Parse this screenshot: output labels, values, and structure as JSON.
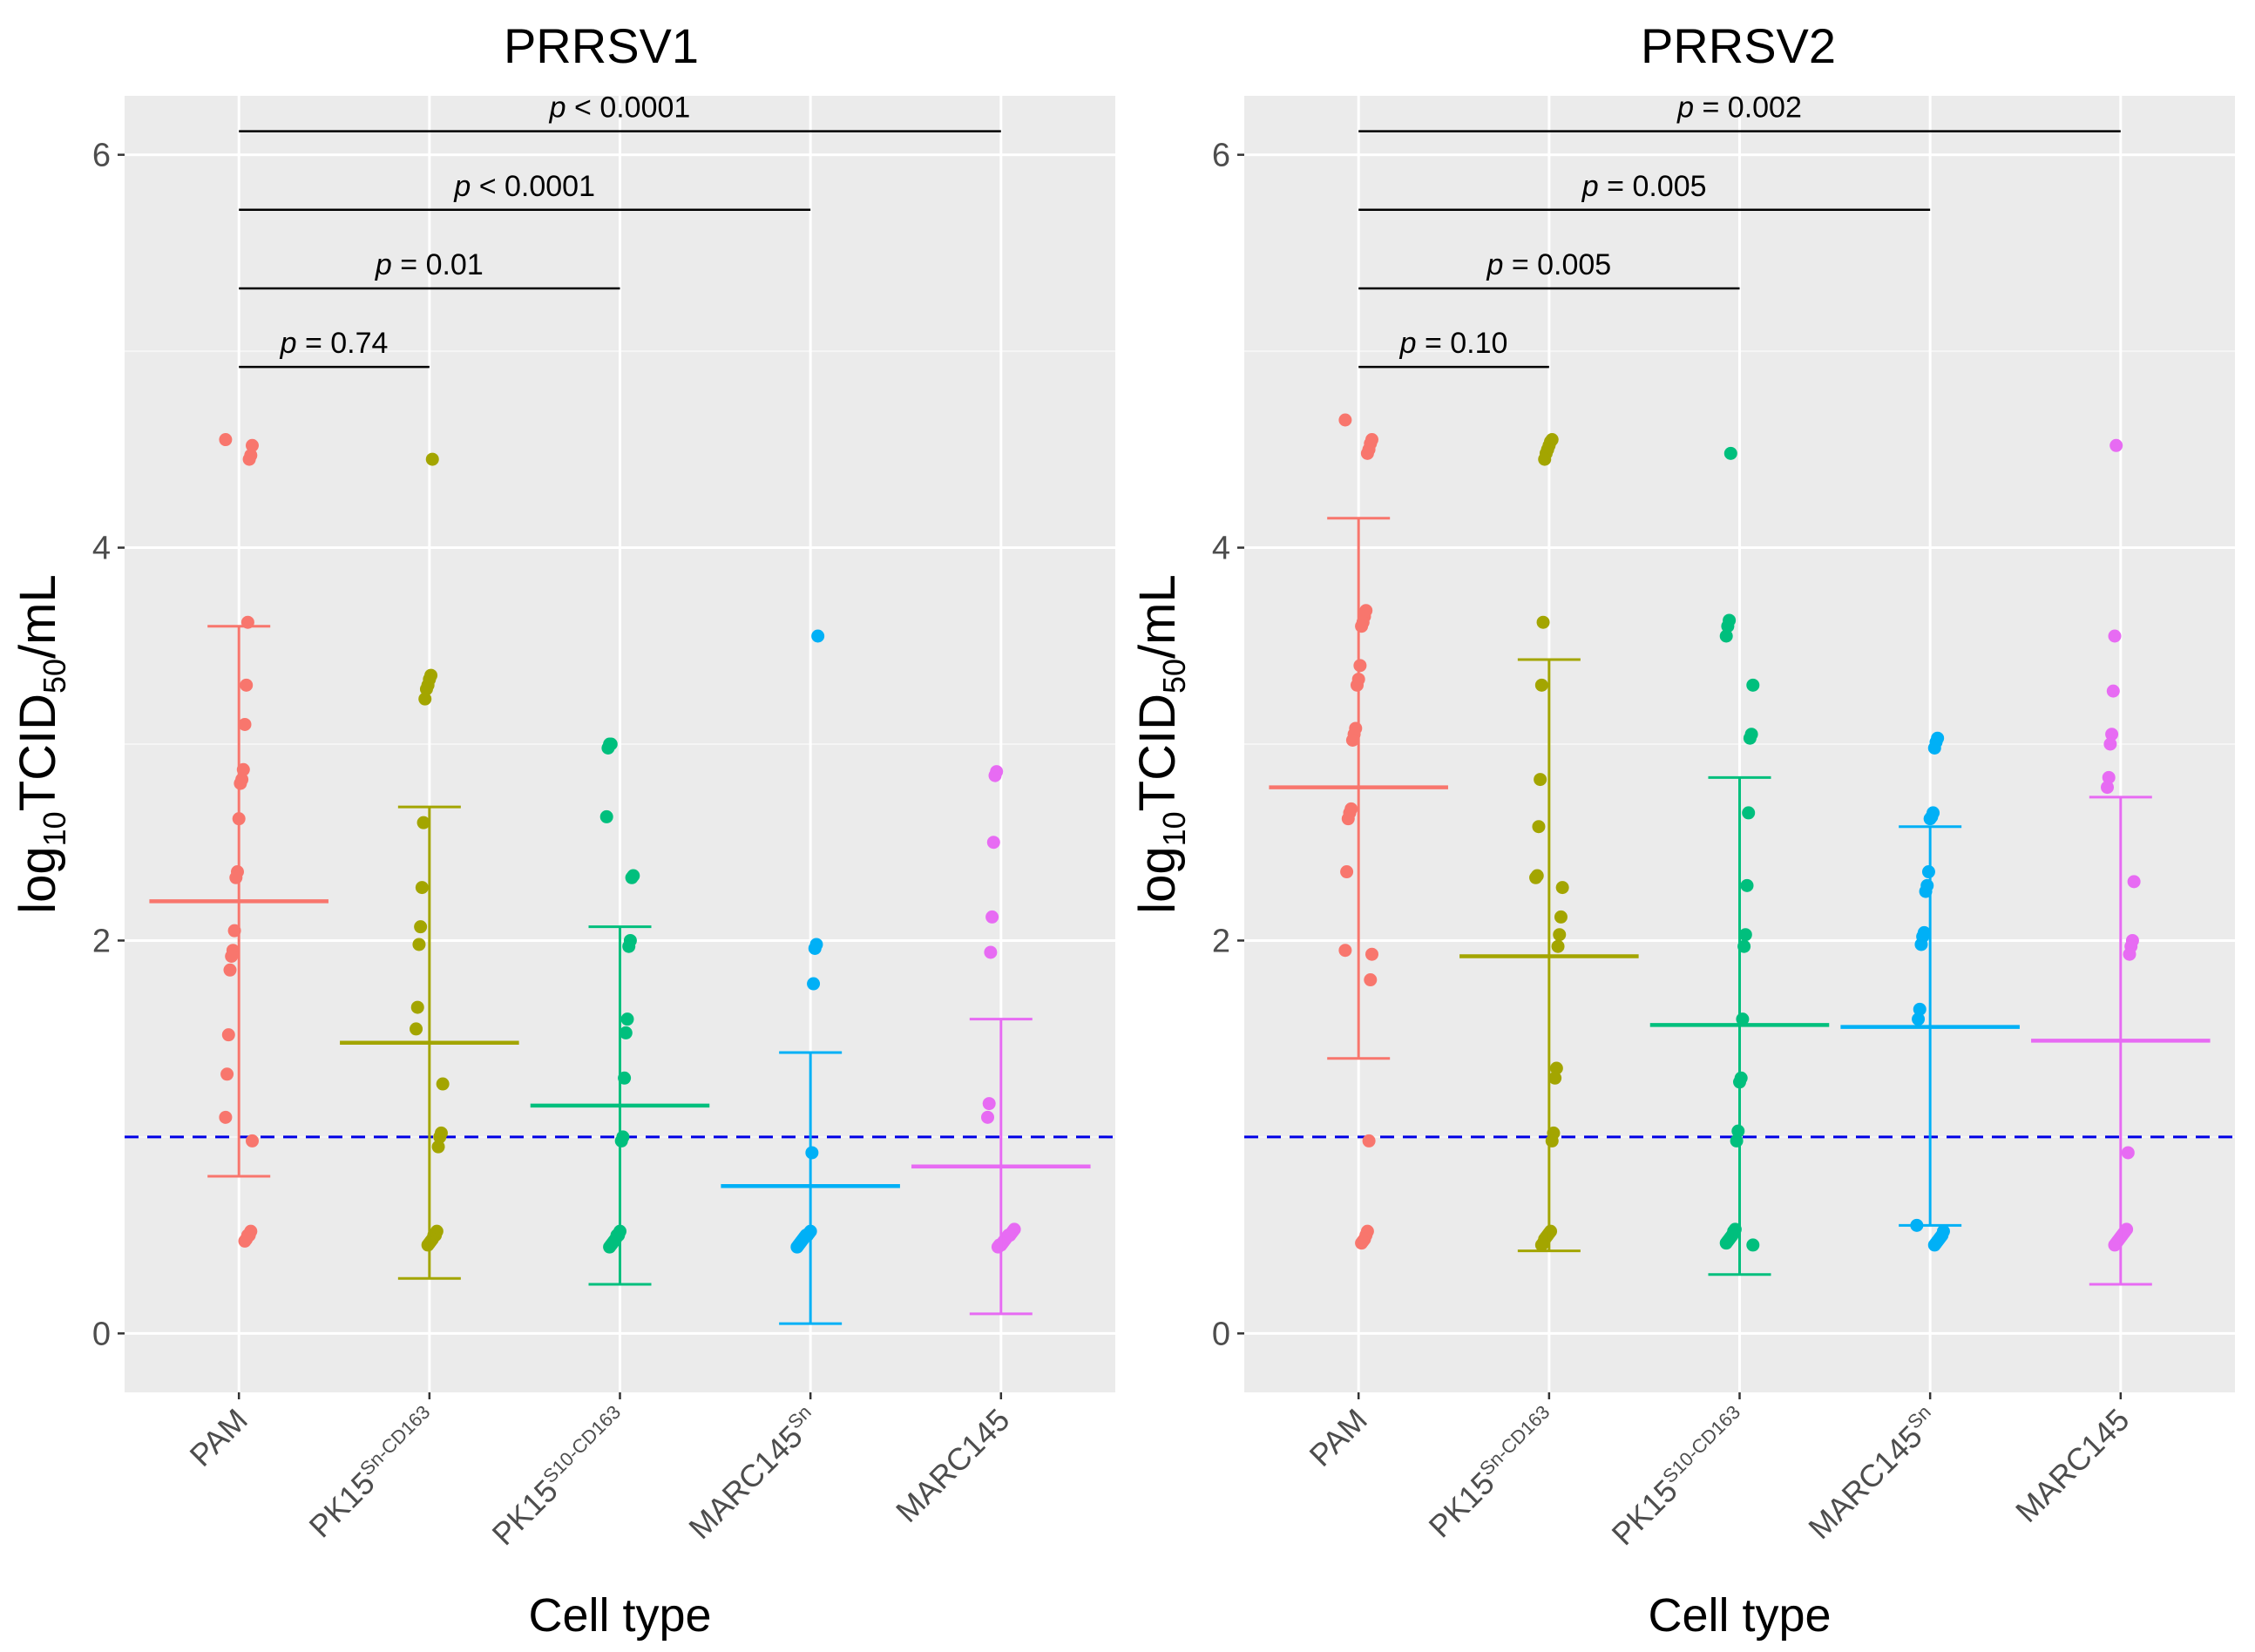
{
  "chart_data": [
    {
      "type": "scatter",
      "title": "PRRSV1",
      "xlabel": "Cell type",
      "ylabel_parts": {
        "base": "log",
        "sub1": "10",
        "mid": "TCID",
        "sub2": "50",
        "tail": "/mL"
      },
      "ylim": [
        -0.3,
        6.3
      ],
      "yticks": [
        "0",
        "2",
        "4",
        "6"
      ],
      "categories": [
        {
          "name": "PAM",
          "sup": ""
        },
        {
          "name": "PK15",
          "sup": "Sn-CD163"
        },
        {
          "name": "PK15",
          "sup": "S10-CD163"
        },
        {
          "name": "MARC145",
          "sup": "Sn"
        },
        {
          "name": "MARC145",
          "sup": ""
        }
      ],
      "detection_limit": 1.0,
      "series": [
        {
          "name": "PAM",
          "color": "#F8766D",
          "mean": 2.2,
          "sd_low": 0.8,
          "sd_high": 3.6,
          "points": [
            4.55,
            4.52,
            4.47,
            4.45,
            3.62,
            3.3,
            3.1,
            2.87,
            2.82,
            2.8,
            2.62,
            2.35,
            2.32,
            2.05,
            1.95,
            1.92,
            1.85,
            1.52,
            1.32,
            1.1,
            0.98,
            0.52,
            0.5,
            0.5,
            0.48,
            0.47
          ]
        },
        {
          "name": "PK15Sn-CD163",
          "color": "#A3A500",
          "mean": 1.48,
          "sd_low": 0.28,
          "sd_high": 2.68,
          "points": [
            4.45,
            3.35,
            3.33,
            3.3,
            3.28,
            3.23,
            2.6,
            2.27,
            2.07,
            1.98,
            1.66,
            1.55,
            1.27,
            1.02,
            1.0,
            0.95,
            0.52,
            0.5,
            0.5,
            0.48,
            0.47,
            0.46,
            0.45
          ]
        },
        {
          "name": "PK15S10-CD163",
          "color": "#00BF7D",
          "mean": 1.16,
          "sd_low": 0.25,
          "sd_high": 2.07,
          "points": [
            3.0,
            3.0,
            2.98,
            2.63,
            2.33,
            2.32,
            2.0,
            1.97,
            1.6,
            1.53,
            1.3,
            1.0,
            0.98,
            0.52,
            0.5,
            0.5,
            0.48,
            0.47,
            0.46,
            0.45,
            0.44
          ]
        },
        {
          "name": "MARC145Sn",
          "color": "#00B0F6",
          "mean": 0.75,
          "sd_low": 0.05,
          "sd_high": 1.43,
          "points": [
            3.55,
            1.98,
            1.96,
            1.78,
            0.92,
            0.52,
            0.51,
            0.5,
            0.5,
            0.49,
            0.48,
            0.47,
            0.46,
            0.45,
            0.44
          ]
        },
        {
          "name": "MARC145",
          "color": "#E76BF3",
          "mean": 0.85,
          "sd_low": 0.1,
          "sd_high": 1.6,
          "points": [
            2.86,
            2.84,
            2.5,
            2.12,
            1.94,
            1.17,
            1.1,
            0.53,
            0.52,
            0.51,
            0.5,
            0.5,
            0.49,
            0.48,
            0.47,
            0.46,
            0.45,
            0.45,
            0.44
          ]
        }
      ],
      "comparisons": [
        {
          "to_index": 1,
          "y": 4.92,
          "p": "p",
          "op": "=",
          "val": "0.74"
        },
        {
          "to_index": 2,
          "y": 5.32,
          "p": "p",
          "op": "=",
          "val": "0.01"
        },
        {
          "to_index": 3,
          "y": 5.72,
          "p": "p",
          "op": "<",
          "val": "0.0001"
        },
        {
          "to_index": 4,
          "y": 6.12,
          "p": "p",
          "op": "<",
          "val": "0.0001"
        }
      ]
    },
    {
      "type": "scatter",
      "title": "PRRSV2",
      "xlabel": "Cell type",
      "ylabel_parts": {
        "base": "log",
        "sub1": "10",
        "mid": "TCID",
        "sub2": "50",
        "tail": "/mL"
      },
      "ylim": [
        -0.3,
        6.3
      ],
      "yticks": [
        "0",
        "2",
        "4",
        "6"
      ],
      "categories": [
        {
          "name": "PAM",
          "sup": ""
        },
        {
          "name": "PK15",
          "sup": "Sn-CD163"
        },
        {
          "name": "PK15",
          "sup": "S10-CD163"
        },
        {
          "name": "MARC145",
          "sup": "Sn"
        },
        {
          "name": "MARC145",
          "sup": ""
        }
      ],
      "detection_limit": 1.0,
      "series": [
        {
          "name": "PAM",
          "color": "#F8766D",
          "mean": 2.78,
          "sd_low": 1.4,
          "sd_high": 4.15,
          "points": [
            4.65,
            4.55,
            4.53,
            4.5,
            4.48,
            3.68,
            3.65,
            3.62,
            3.6,
            3.4,
            3.33,
            3.3,
            3.08,
            3.05,
            3.02,
            2.67,
            2.65,
            2.62,
            2.35,
            1.95,
            1.93,
            1.8,
            0.98,
            0.52,
            0.5,
            0.48,
            0.47,
            0.46
          ]
        },
        {
          "name": "PK15Sn-CD163",
          "color": "#A3A500",
          "mean": 1.92,
          "sd_low": 0.42,
          "sd_high": 3.43,
          "points": [
            4.55,
            4.54,
            4.52,
            4.5,
            4.48,
            4.45,
            3.62,
            3.3,
            2.82,
            2.58,
            2.33,
            2.32,
            2.27,
            2.12,
            2.03,
            1.97,
            1.35,
            1.3,
            1.02,
            0.98,
            0.52,
            0.51,
            0.5,
            0.49,
            0.48,
            0.46,
            0.45
          ]
        },
        {
          "name": "PK15S10-CD163",
          "color": "#00BF7D",
          "mean": 1.57,
          "sd_low": 0.3,
          "sd_high": 2.83,
          "points": [
            4.48,
            3.63,
            3.6,
            3.55,
            3.3,
            3.05,
            3.03,
            2.65,
            2.28,
            2.03,
            1.97,
            1.6,
            1.3,
            1.28,
            1.03,
            0.98,
            0.53,
            0.52,
            0.5,
            0.49,
            0.48,
            0.47,
            0.46,
            0.45
          ]
        },
        {
          "name": "MARC145Sn",
          "color": "#00B0F6",
          "mean": 1.56,
          "sd_low": 0.55,
          "sd_high": 2.58,
          "points": [
            3.03,
            3.01,
            2.98,
            2.65,
            2.63,
            2.62,
            2.35,
            2.28,
            2.25,
            2.04,
            2.02,
            1.98,
            1.65,
            1.6,
            0.55,
            0.52,
            0.5,
            0.49,
            0.48,
            0.47,
            0.46,
            0.45
          ]
        },
        {
          "name": "MARC145",
          "color": "#E76BF3",
          "mean": 1.49,
          "sd_low": 0.25,
          "sd_high": 2.73,
          "points": [
            4.52,
            3.55,
            3.27,
            3.05,
            3.0,
            2.83,
            2.78,
            2.3,
            2.0,
            1.97,
            1.93,
            0.92,
            0.53,
            0.52,
            0.51,
            0.5,
            0.49,
            0.48,
            0.47,
            0.46,
            0.45
          ]
        }
      ],
      "comparisons": [
        {
          "to_index": 1,
          "y": 4.92,
          "p": "p",
          "op": "=",
          "val": "0.10"
        },
        {
          "to_index": 2,
          "y": 5.32,
          "p": "p",
          "op": "=",
          "val": "0.005"
        },
        {
          "to_index": 3,
          "y": 5.72,
          "p": "p",
          "op": "=",
          "val": "0.005"
        },
        {
          "to_index": 4,
          "y": 6.12,
          "p": "p",
          "op": "=",
          "val": "0.002"
        }
      ]
    }
  ]
}
